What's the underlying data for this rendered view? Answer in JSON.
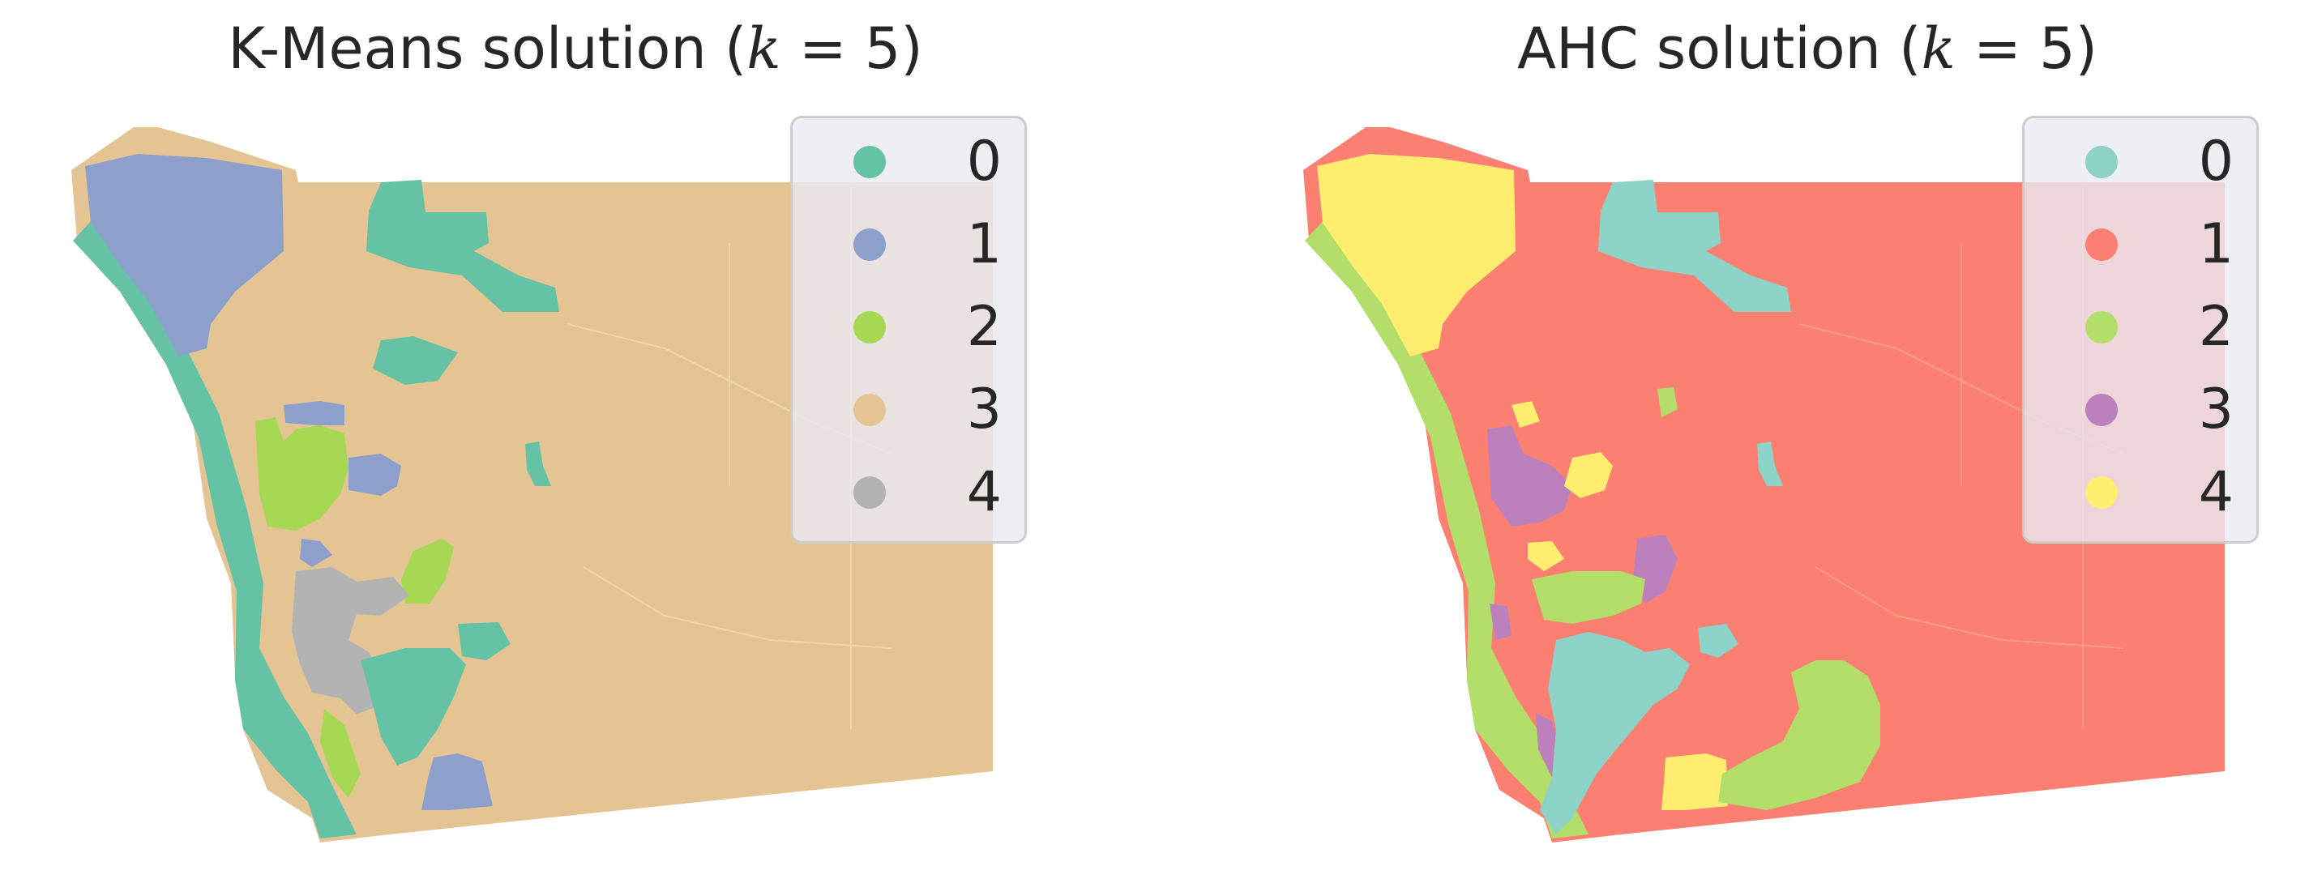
{
  "panels": [
    {
      "title_prefix": "K-Means solution (",
      "title_var": "k",
      "title_suffix": " = 5)",
      "legend": [
        {
          "label": "0",
          "color": "#66c2a5"
        },
        {
          "label": "1",
          "color": "#8da0cb"
        },
        {
          "label": "2",
          "color": "#a6d854"
        },
        {
          "label": "3",
          "color": "#e5c494"
        },
        {
          "label": "4",
          "color": "#b3b3b3"
        }
      ]
    },
    {
      "title_prefix": "AHC solution (",
      "title_var": "k",
      "title_suffix": " = 5)",
      "legend": [
        {
          "label": "0",
          "color": "#8dd3c7"
        },
        {
          "label": "1",
          "color": "#fb8072"
        },
        {
          "label": "2",
          "color": "#b3de69"
        },
        {
          "label": "3",
          "color": "#bc80bd"
        },
        {
          "label": "4",
          "color": "#ffed6f"
        }
      ]
    }
  ]
}
